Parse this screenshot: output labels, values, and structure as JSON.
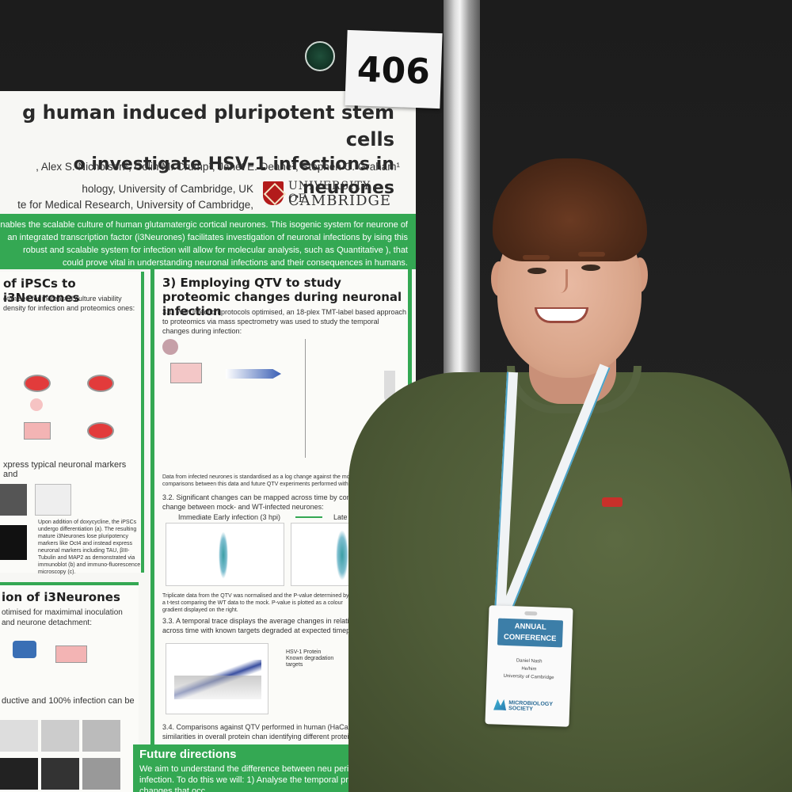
{
  "booth_number": "406",
  "poster": {
    "title_line1": "g human induced pluripotent stem cells",
    "title_line2": "o investigate HSV-1 infections in neurones",
    "authors": ", Alex S. Nicholson², Colin M. Crump¹, Janet E. Deane², Stephen C. Graham¹",
    "affiliation1": "hology, University of Cambridge, UK",
    "affiliation2": "te for Medical Research, University of Cambridge, UK",
    "logo_line1": "UNIVERSITY OF",
    "logo_line2": "CAMBRIDGE",
    "intro_text": "nables the scalable culture of human glutamatergic cortical neurones. This isogenic system for neurone of an integrated transcription factor (i3Neurones) facilitates investigation of neuronal infections by ising this robust and scalable system for infection will allow for molecular analysis, such as Quantitative ), that could prove vital in understanding neuronal infections and their consequences in humans.",
    "section1_title": "of iPSCs to i3Neurones",
    "section1_body": "otimised for increased culture viability density for infection and proteomics ones:",
    "section1_sub": "xpress typical neuronal markers and",
    "section1_caption": "Upon addition of doxycycline, the iPSCs undergo differentiation (a). The resulting mature i3Neurones lose pluripotency markers like Oct4 and instead express neuronal markers including TAU, βIII-Tubulin and MAP2 as demonstrated via immunoblot (b) and immuno-fluorescence microscopy (c).",
    "section3_title": "ion of i3Neurones",
    "section3_body": "otimised for maximimal inoculation and neurone detachment:",
    "section3_sub": "ductive and 100% infection can be",
    "section2_title": "3) Employing QTV to study proteomic changes during neuronal infection",
    "section2_p1": "3.1. With infection protocols optimised, an 18-plex TMT-label based approach to proteomics via mass spectrometry was used to study the temporal changes during infection:",
    "section2_p2": "Data from infected neurones is standardised as a log change against the mock values to allow comparisons between this data and future QTV experiments performed with HSV-1 mutants.",
    "section2_p3": "3.2. Significant changes can be mapped across time by comparing the fold change between mock- and WT-infected neurones:",
    "early_label": "Immediate Early infection (3 hpi)",
    "late_label": "Late infection (38 hpi)",
    "section2_p4": "Triplicate data from the QTV was normalised and the P-value determined by a t-test comparing the WT data to the mock. P-value is plotted as a colour gradient displayed on the right.",
    "section2_p5": "3.3. A temporal trace displays the average changes in relati abundance across time with known targets degraded at expected timepoints:",
    "legend1": "HSV-1 Protein",
    "legend2": "Known degradation targets",
    "section2_p6": "3.4. Comparisons against QTV performed in human (HaCaT cells) reveal similarities in overall protein chan identifying different proteins to be studied:",
    "future_title": "Future directions",
    "future_body": "We aim to understand the difference between neu peripheral HSV-1 infection. To do this we will: 1) Analyse the temporal proteomic changes that occ"
  },
  "badge": {
    "header_line1": "ANNUAL",
    "header_line2": "CONFERENCE",
    "name": "Daniel Nash",
    "role": "He/him",
    "org": "University of Cambridge",
    "logo_text1": "MICROBIOLOGY",
    "logo_text2": "SOCIETY"
  },
  "colors": {
    "poster_green": "#34a853",
    "sweater": "#4e5b37",
    "badge_blue": "#3c7ea8"
  }
}
